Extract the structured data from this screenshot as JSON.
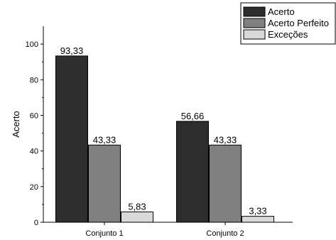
{
  "chart_data": {
    "type": "bar",
    "categories": [
      "Conjunto 1",
      "Conjunto 2"
    ],
    "series": [
      {
        "name": "Acerto",
        "values": [
          93.33,
          56.66
        ],
        "labels": [
          "93,33",
          "56,66"
        ],
        "color": "#2d2d2d"
      },
      {
        "name": "Acerto Perfeito",
        "values": [
          43.33,
          43.33
        ],
        "labels": [
          "43,33",
          "43,33"
        ],
        "color": "#808080"
      },
      {
        "name": "Exceções",
        "values": [
          5.83,
          3.33
        ],
        "labels": [
          "5,83",
          "3,33"
        ],
        "color": "#d9d9d9"
      }
    ],
    "ylabel": "Acerto",
    "xlabel": "",
    "ylim": [
      0,
      110
    ],
    "yticks": [
      0,
      20,
      40,
      60,
      80,
      100
    ],
    "grid": false,
    "legend_position": "top-right"
  }
}
